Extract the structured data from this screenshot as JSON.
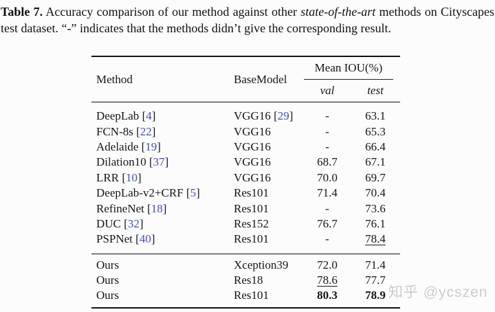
{
  "caption": {
    "label": "Table 7.",
    "before_italic": "Accuracy comparison of our method against other",
    "italic": "state-of-the-art",
    "after_italic": "methods on Cityscapes test dataset. “-” indicates that the methods didn’t give the corresponding result."
  },
  "colors": {
    "citation_blue": "#3f4fc0",
    "rule_black": "#141414",
    "watermark_gray": "#cbcbcb",
    "background": "#fcfcfc"
  },
  "table": {
    "headers": {
      "method": "Method",
      "basemodel": "BaseModel",
      "mean_iou": "Mean IOU(%)",
      "val": "val",
      "test": "test"
    },
    "groups": [
      {
        "rows": [
          {
            "method": "DeepLab",
            "cite": "4",
            "basemodel": "VGG16",
            "basemodel_cite": "29",
            "val": "-",
            "test": "63.1"
          },
          {
            "method": "FCN-8s",
            "cite": "22",
            "basemodel": "VGG16",
            "val": "-",
            "test": "65.3"
          },
          {
            "method": "Adelaide",
            "cite": "19",
            "basemodel": "VGG16",
            "val": "-",
            "test": "66.4"
          },
          {
            "method": "Dilation10",
            "cite": "37",
            "basemodel": "VGG16",
            "val": "68.7",
            "test": "67.1"
          },
          {
            "method": "LRR",
            "cite": "10",
            "basemodel": "VGG16",
            "val": "70.0",
            "test": "69.7"
          },
          {
            "method": "DeepLab-v2+CRF",
            "cite": "5",
            "basemodel": "Res101",
            "val": "71.4",
            "test": "70.4"
          },
          {
            "method": "RefineNet",
            "cite": "18",
            "basemodel": "Res101",
            "val": "-",
            "test": "73.6"
          },
          {
            "method": "DUC",
            "cite": "32",
            "basemodel": "Res152",
            "val": "76.7",
            "test": "76.1"
          },
          {
            "method": "PSPNet",
            "cite": "40",
            "basemodel": "Res101",
            "val": "-",
            "test": "78.4",
            "test_style": "underline"
          }
        ]
      },
      {
        "rows": [
          {
            "method": "Ours",
            "basemodel": "Xception39",
            "val": "72.0",
            "test": "71.4"
          },
          {
            "method": "Ours",
            "basemodel": "Res18",
            "val": "78.6",
            "test": "77.7",
            "val_style": "underline"
          },
          {
            "method": "Ours",
            "basemodel": "Res101",
            "val": "80.3",
            "test": "78.9",
            "val_style": "bold",
            "test_style": "bold"
          }
        ]
      }
    ]
  },
  "watermark": {
    "text": "知乎 @ycszen"
  }
}
